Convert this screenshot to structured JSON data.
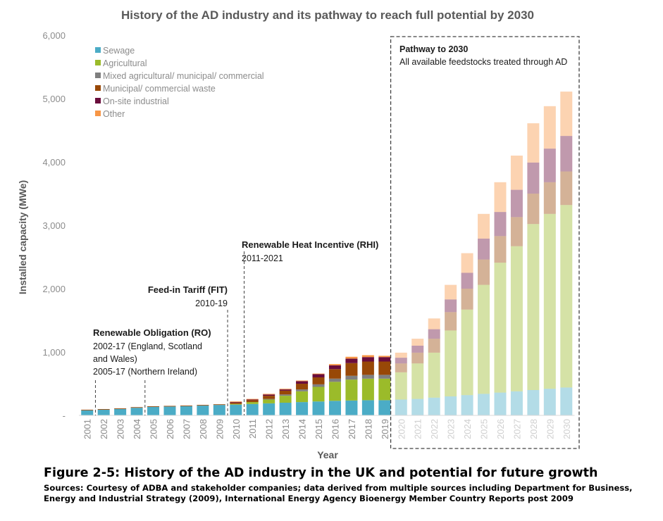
{
  "chart_data": {
    "type": "bar",
    "stacked": true,
    "title": "History of the AD industry and its pathway to reach full potential by 2030",
    "xlabel": "Year",
    "ylabel": "Installed capacity (MWe)",
    "ylim": [
      0,
      6000
    ],
    "ytick_labels": [
      "-",
      "1,000",
      "2,000",
      "3,000",
      "4,000",
      "5,000",
      "6,000"
    ],
    "categories": [
      "2001",
      "2002",
      "2003",
      "2004",
      "2005",
      "2006",
      "2007",
      "2008",
      "2009",
      "2010",
      "2011",
      "2012",
      "2013",
      "2014",
      "2015",
      "2016",
      "2017",
      "2018",
      "2019",
      "2020",
      "2021",
      "2022",
      "2023",
      "2024",
      "2025",
      "2026",
      "2027",
      "2028",
      "2029",
      "2030"
    ],
    "projected_from": "2020",
    "series": [
      {
        "name": "Sewage",
        "color": "#4bacc6",
        "values": [
          80,
          90,
          100,
          120,
          135,
          140,
          145,
          155,
          165,
          170,
          180,
          190,
          200,
          210,
          220,
          230,
          235,
          240,
          240,
          250,
          260,
          280,
          300,
          320,
          340,
          360,
          380,
          400,
          420,
          440
        ]
      },
      {
        "name": "Agricultural",
        "color": "#9bbb2a",
        "values": [
          0,
          0,
          0,
          0,
          0,
          0,
          0,
          0,
          0,
          10,
          30,
          60,
          110,
          170,
          230,
          300,
          330,
          340,
          340,
          430,
          560,
          710,
          1040,
          1350,
          1720,
          2050,
          2290,
          2620,
          2760,
          2880
        ]
      },
      {
        "name": "Mixed agricultural/ municipal/ commercial",
        "color": "#7f7f7f",
        "values": [
          0,
          0,
          0,
          0,
          0,
          0,
          0,
          0,
          0,
          0,
          0,
          10,
          20,
          30,
          40,
          50,
          60,
          60,
          60,
          0,
          0,
          0,
          0,
          0,
          0,
          0,
          0,
          0,
          0,
          0
        ]
      },
      {
        "name": "Municipal/ commercial waste",
        "color": "#984807",
        "values": [
          10,
          10,
          10,
          10,
          10,
          10,
          10,
          10,
          10,
          20,
          30,
          50,
          60,
          90,
          110,
          150,
          200,
          210,
          210,
          140,
          170,
          220,
          290,
          330,
          400,
          420,
          460,
          480,
          500,
          530
        ]
      },
      {
        "name": "On-site industrial",
        "color": "#6a0d3c",
        "values": [
          0,
          0,
          0,
          0,
          0,
          0,
          0,
          0,
          0,
          10,
          10,
          20,
          20,
          40,
          50,
          60,
          70,
          70,
          70,
          90,
          110,
          150,
          200,
          250,
          330,
          380,
          430,
          490,
          530,
          560
        ]
      },
      {
        "name": "Other",
        "color": "#f79646",
        "values": [
          0,
          0,
          0,
          0,
          0,
          0,
          0,
          0,
          0,
          10,
          10,
          10,
          10,
          10,
          10,
          20,
          30,
          30,
          20,
          80,
          110,
          170,
          230,
          310,
          390,
          470,
          540,
          620,
          670,
          700
        ]
      }
    ],
    "annotations": [
      {
        "id": "ro",
        "head": "Renewable Obligation (RO)",
        "lines": [
          "2002-17 (England, Scotland",
          "and Wales)",
          "2005-17 (Northern Ireland)"
        ]
      },
      {
        "id": "fit",
        "head": "Feed-in Tariff (FIT)",
        "lines": [
          "2010-19"
        ]
      },
      {
        "id": "rhi",
        "head": "Renewable Heat Incentive (RHI)",
        "lines": [
          "2011-2021"
        ]
      },
      {
        "id": "pathway",
        "head": "Pathway to 2030",
        "lines": [
          "All available feedstocks treated through AD"
        ]
      }
    ]
  },
  "caption": {
    "figure_title": "Figure 2-5: History of the AD industry in the UK and potential for future growth",
    "sources": "Sources: Courtesy of ADBA and stakeholder companies; data derived from multiple sources including Department for Business, Energy and Industrial Strategy (2009), International Energy Agency Bioenergy Member Country Reports post 2009"
  }
}
